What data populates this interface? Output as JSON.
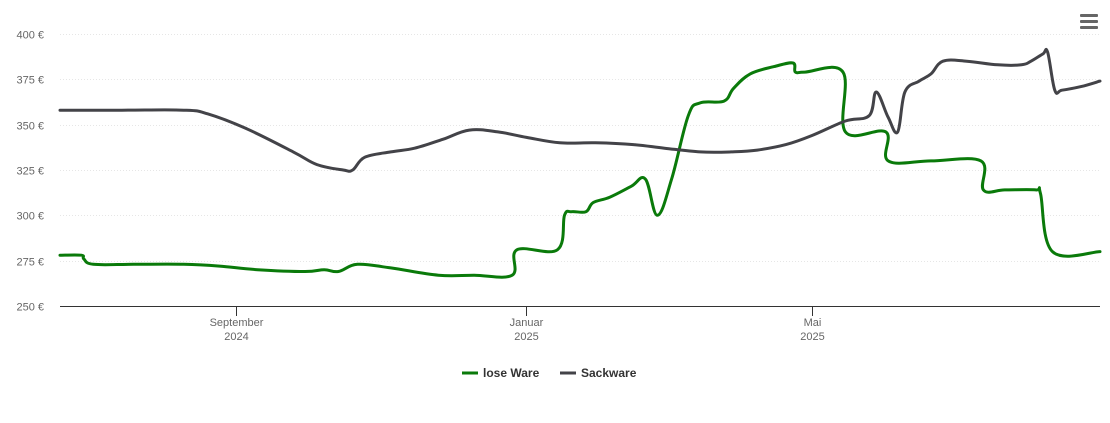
{
  "menu_icon": "hamburger-menu-icon",
  "chart_data": {
    "type": "line",
    "y_unit": "€",
    "y_ticks": [
      "250 €",
      "275 €",
      "300 €",
      "325 €",
      "350 €",
      "375 €",
      "400 €"
    ],
    "ylim": [
      250,
      400
    ],
    "x_ticks": [
      {
        "date": "2024-09-01",
        "month": "September",
        "year": "2024"
      },
      {
        "date": "2025-01-01",
        "month": "Januar",
        "year": "2025"
      },
      {
        "date": "2025-05-01",
        "month": "Mai",
        "year": "2025"
      }
    ],
    "xlim": [
      "2024-06-19",
      "2025-08-30"
    ],
    "grid": true,
    "legend_placement": "bottom-center",
    "series": [
      {
        "name": "lose Ware",
        "color": "#0a7a0a",
        "points": [
          [
            "2024-06-19",
            278
          ],
          [
            "2024-06-28",
            278
          ],
          [
            "2024-06-29",
            276
          ],
          [
            "2024-07-03",
            273
          ],
          [
            "2024-07-20",
            273
          ],
          [
            "2024-08-10",
            273
          ],
          [
            "2024-08-25",
            272
          ],
          [
            "2024-09-10",
            270
          ],
          [
            "2024-09-30",
            269
          ],
          [
            "2024-10-08",
            270
          ],
          [
            "2024-10-14",
            269
          ],
          [
            "2024-10-22",
            273
          ],
          [
            "2024-11-05",
            271
          ],
          [
            "2024-11-25",
            267
          ],
          [
            "2024-12-10",
            267
          ],
          [
            "2024-12-26",
            267
          ],
          [
            "2024-12-28",
            281
          ],
          [
            "2025-01-14",
            281
          ],
          [
            "2025-01-17",
            300
          ],
          [
            "2025-01-20",
            302
          ],
          [
            "2025-01-26",
            302
          ],
          [
            "2025-01-29",
            307
          ],
          [
            "2025-02-05",
            310
          ],
          [
            "2025-02-14",
            316
          ],
          [
            "2025-02-20",
            320
          ],
          [
            "2025-02-25",
            300
          ],
          [
            "2025-03-03",
            320
          ],
          [
            "2025-03-10",
            355
          ],
          [
            "2025-03-15",
            362
          ],
          [
            "2025-03-25",
            363
          ],
          [
            "2025-03-29",
            370
          ],
          [
            "2025-04-05",
            378
          ],
          [
            "2025-04-15",
            382
          ],
          [
            "2025-04-23",
            384
          ],
          [
            "2025-04-24",
            379
          ],
          [
            "2025-04-28",
            379
          ],
          [
            "2025-05-14",
            379
          ],
          [
            "2025-05-15",
            346
          ],
          [
            "2025-06-01",
            346
          ],
          [
            "2025-06-02",
            330
          ],
          [
            "2025-06-20",
            330
          ],
          [
            "2025-07-11",
            330
          ],
          [
            "2025-07-12",
            314
          ],
          [
            "2025-07-21",
            314
          ],
          [
            "2025-08-03",
            314
          ],
          [
            "2025-08-05",
            312
          ],
          [
            "2025-08-10",
            280
          ],
          [
            "2025-08-30",
            280
          ]
        ]
      },
      {
        "name": "Sackware",
        "color": "#434348",
        "points": [
          [
            "2024-06-19",
            358
          ],
          [
            "2024-07-15",
            358
          ],
          [
            "2024-08-10",
            358
          ],
          [
            "2024-08-20",
            356
          ],
          [
            "2024-09-05",
            348
          ],
          [
            "2024-09-25",
            335
          ],
          [
            "2024-10-05",
            328
          ],
          [
            "2024-10-16",
            325
          ],
          [
            "2024-10-20",
            325
          ],
          [
            "2024-10-25",
            332
          ],
          [
            "2024-11-05",
            335
          ],
          [
            "2024-11-15",
            337
          ],
          [
            "2024-11-27",
            342
          ],
          [
            "2024-12-08",
            347
          ],
          [
            "2024-12-20",
            346
          ],
          [
            "2025-01-01",
            343
          ],
          [
            "2025-01-15",
            340
          ],
          [
            "2025-01-30",
            340
          ],
          [
            "2025-02-15",
            339
          ],
          [
            "2025-02-28",
            337
          ],
          [
            "2025-03-15",
            335
          ],
          [
            "2025-03-28",
            335
          ],
          [
            "2025-04-08",
            336
          ],
          [
            "2025-04-20",
            339
          ],
          [
            "2025-05-01",
            344
          ],
          [
            "2025-05-15",
            352
          ],
          [
            "2025-05-25",
            355
          ],
          [
            "2025-05-28",
            368
          ],
          [
            "2025-06-02",
            354
          ],
          [
            "2025-06-06",
            346
          ],
          [
            "2025-06-09",
            368
          ],
          [
            "2025-06-15",
            374
          ],
          [
            "2025-06-20",
            378
          ],
          [
            "2025-06-25",
            385
          ],
          [
            "2025-07-05",
            385
          ],
          [
            "2025-07-18",
            383
          ],
          [
            "2025-07-28",
            383
          ],
          [
            "2025-08-01",
            385
          ],
          [
            "2025-08-06",
            389
          ],
          [
            "2025-08-08",
            390
          ],
          [
            "2025-08-11",
            369
          ],
          [
            "2025-08-14",
            369
          ],
          [
            "2025-08-22",
            371
          ],
          [
            "2025-08-30",
            374
          ]
        ]
      }
    ]
  }
}
